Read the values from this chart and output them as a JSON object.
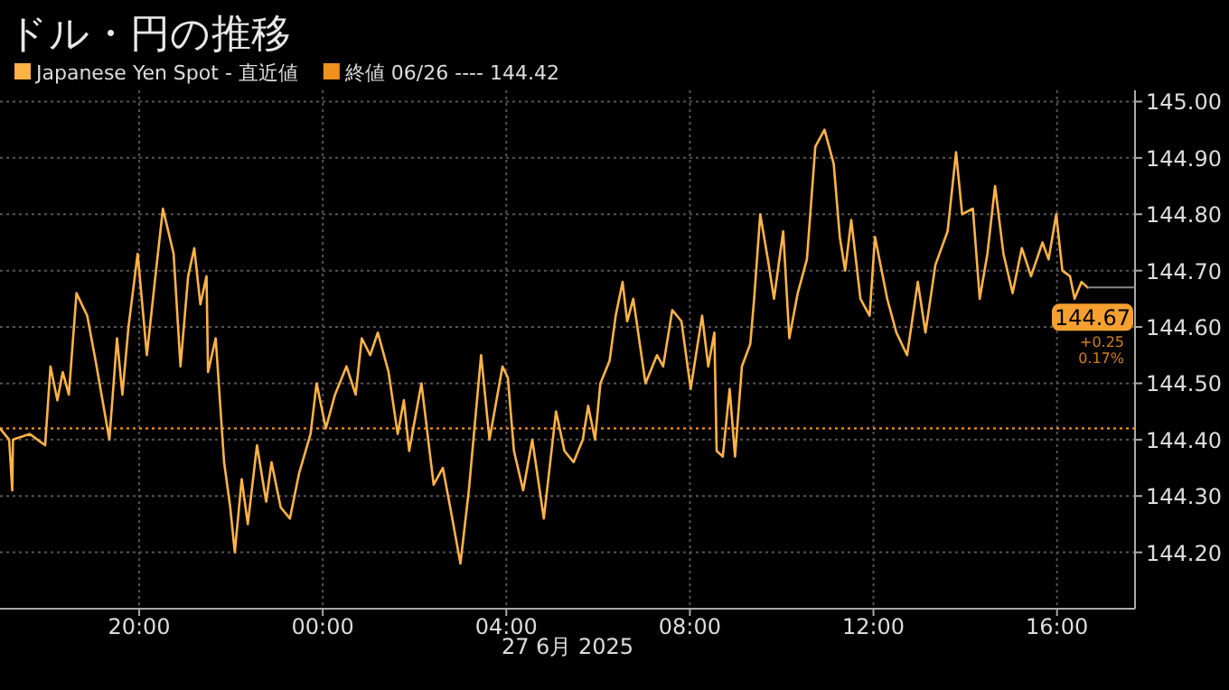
{
  "chart_data": {
    "type": "line",
    "title": "ドル・円の推移",
    "xlabel": "27 6月 2025",
    "x": [
      "2025-06-26T16:58",
      "2025-06-26T17:10",
      "2025-06-26T17:14",
      "2025-06-26T17:15",
      "2025-06-26T17:37",
      "2025-06-26T17:57",
      "2025-06-26T18:04",
      "2025-06-26T18:13",
      "2025-06-26T18:20",
      "2025-06-26T18:28",
      "2025-06-26T18:38",
      "2025-06-26T18:52",
      "2025-06-26T19:03",
      "2025-06-26T19:21",
      "2025-06-26T19:31",
      "2025-06-26T19:38",
      "2025-06-26T19:46",
      "2025-06-26T19:58",
      "2025-06-26T20:10",
      "2025-06-26T20:22",
      "2025-06-26T20:31",
      "2025-06-26T20:45",
      "2025-06-26T20:54",
      "2025-06-26T21:04",
      "2025-06-26T21:12",
      "2025-06-26T21:20",
      "2025-06-26T21:28",
      "2025-06-26T21:30",
      "2025-06-26T21:40",
      "2025-06-26T21:51",
      "2025-06-26T21:59",
      "2025-06-26T22:05",
      "2025-06-26T22:14",
      "2025-06-26T22:22",
      "2025-06-26T22:34",
      "2025-06-26T22:46",
      "2025-06-26T22:53",
      "2025-06-26T23:05",
      "2025-06-26T23:17",
      "2025-06-26T23:29",
      "2025-06-26T23:44",
      "2025-06-26T23:52",
      "2025-06-27T00:04",
      "2025-06-27T00:16",
      "2025-06-27T00:31",
      "2025-06-27T00:43",
      "2025-06-27T00:51",
      "2025-06-27T01:02",
      "2025-06-27T01:12",
      "2025-06-27T01:26",
      "2025-06-27T01:38",
      "2025-06-27T01:46",
      "2025-06-27T01:53",
      "2025-06-27T02:09",
      "2025-06-27T02:25",
      "2025-06-27T02:37",
      "2025-06-27T02:48",
      "2025-06-27T03:00",
      "2025-06-27T03:11",
      "2025-06-27T03:27",
      "2025-06-27T03:38",
      "2025-06-27T03:55",
      "2025-06-27T04:02",
      "2025-06-27T04:10",
      "2025-06-27T04:22",
      "2025-06-27T04:34",
      "2025-06-27T04:49",
      "2025-06-27T05:05",
      "2025-06-27T05:16",
      "2025-06-27T05:28",
      "2025-06-27T05:40",
      "2025-06-27T05:47",
      "2025-06-27T05:56",
      "2025-06-27T06:03",
      "2025-06-27T06:15",
      "2025-06-27T06:23",
      "2025-06-27T06:32",
      "2025-06-27T06:38",
      "2025-06-27T06:46",
      "2025-06-27T07:02",
      "2025-06-27T07:17",
      "2025-06-27T07:25",
      "2025-06-27T07:37",
      "2025-06-27T07:49",
      "2025-06-27T08:01",
      "2025-06-27T08:16",
      "2025-06-27T08:24",
      "2025-06-27T08:32",
      "2025-06-27T08:35",
      "2025-06-27T08:43",
      "2025-06-27T08:52",
      "2025-06-27T08:59",
      "2025-06-27T09:08",
      "2025-06-27T09:19",
      "2025-06-27T09:24",
      "2025-06-27T09:32",
      "2025-06-27T09:42",
      "2025-06-27T09:50",
      "2025-06-27T10:02",
      "2025-06-27T10:10",
      "2025-06-27T10:21",
      "2025-06-27T10:33",
      "2025-06-27T10:44",
      "2025-06-27T10:56",
      "2025-06-27T11:08",
      "2025-06-27T11:16",
      "2025-06-27T11:23",
      "2025-06-27T11:31",
      "2025-06-27T11:43",
      "2025-06-27T11:55",
      "2025-06-27T12:02",
      "2025-06-27T12:18",
      "2025-06-27T12:30",
      "2025-06-27T12:44",
      "2025-06-27T12:58",
      "2025-06-27T13:08",
      "2025-06-27T13:21",
      "2025-06-27T13:37",
      "2025-06-27T13:48",
      "2025-06-27T13:56",
      "2025-06-27T14:10",
      "2025-06-27T14:19",
      "2025-06-27T14:29",
      "2025-06-27T14:39",
      "2025-06-27T14:50",
      "2025-06-27T15:02",
      "2025-06-27T15:14",
      "2025-06-27T15:26",
      "2025-06-27T15:41",
      "2025-06-27T15:49",
      "2025-06-27T15:59",
      "2025-06-27T16:07",
      "2025-06-27T16:17",
      "2025-06-27T16:23",
      "2025-06-27T16:32",
      "2025-06-27T16:40"
    ],
    "series": [
      {
        "name": "Japanese Yen Spot - 直近値",
        "color": "#ffb347",
        "values": [
          144.42,
          144.4,
          144.31,
          144.4,
          144.41,
          144.39,
          144.53,
          144.47,
          144.52,
          144.48,
          144.66,
          144.62,
          144.54,
          144.4,
          144.58,
          144.48,
          144.6,
          144.73,
          144.55,
          144.7,
          144.81,
          144.73,
          144.53,
          144.69,
          144.74,
          144.64,
          144.69,
          144.52,
          144.58,
          144.36,
          144.28,
          144.2,
          144.33,
          144.25,
          144.39,
          144.29,
          144.36,
          144.28,
          144.26,
          144.34,
          144.41,
          144.5,
          144.42,
          144.48,
          144.53,
          144.48,
          144.58,
          144.55,
          144.59,
          144.52,
          144.41,
          144.47,
          144.38,
          144.5,
          144.32,
          144.35,
          144.27,
          144.18,
          144.31,
          144.55,
          144.4,
          144.53,
          144.51,
          144.38,
          144.31,
          144.4,
          144.26,
          144.45,
          144.38,
          144.36,
          144.4,
          144.46,
          144.4,
          144.5,
          144.54,
          144.62,
          144.68,
          144.61,
          144.65,
          144.5,
          144.55,
          144.53,
          144.63,
          144.61,
          144.49,
          144.62,
          144.53,
          144.59,
          144.38,
          144.37,
          144.49,
          144.37,
          144.53,
          144.57,
          144.65,
          144.8,
          144.72,
          144.65,
          144.77,
          144.58,
          144.66,
          144.72,
          144.92,
          144.95,
          144.89,
          144.76,
          144.7,
          144.79,
          144.65,
          144.62,
          144.76,
          144.65,
          144.59,
          144.55,
          144.68,
          144.59,
          144.71,
          144.77,
          144.91,
          144.8,
          144.81,
          144.65,
          144.73,
          144.85,
          144.73,
          144.66,
          144.74,
          144.69,
          144.75,
          144.72,
          144.8,
          144.7,
          144.69,
          144.65,
          144.68,
          144.67
        ]
      }
    ],
    "xlim": [
      "2025-06-26T16:58",
      "2025-06-27T17:42"
    ],
    "ylim": [
      144.1,
      145.02
    ],
    "xticks": [
      {
        "value": "2025-06-26T20:00",
        "label": "20:00"
      },
      {
        "value": "2025-06-27T00:00",
        "label": "00:00"
      },
      {
        "value": "2025-06-27T04:00",
        "label": "04:00"
      },
      {
        "value": "2025-06-27T08:00",
        "label": "08:00"
      },
      {
        "value": "2025-06-27T12:00",
        "label": "12:00"
      },
      {
        "value": "2025-06-27T16:00",
        "label": "16:00"
      }
    ],
    "yticks": [
      {
        "value": 144.2,
        "label": "144.20"
      },
      {
        "value": 144.3,
        "label": "144.30"
      },
      {
        "value": 144.4,
        "label": "144.40"
      },
      {
        "value": 144.5,
        "label": "144.50"
      },
      {
        "value": 144.6,
        "label": "144.60"
      },
      {
        "value": 144.7,
        "label": "144.70"
      },
      {
        "value": 144.8,
        "label": "144.80"
      },
      {
        "value": 144.9,
        "label": "144.90"
      },
      {
        "value": 145.0,
        "label": "145.00"
      }
    ],
    "grid": true,
    "legend": "top left",
    "line_style": "solid",
    "ref_lines": [
      {
        "axis": "y",
        "value": 144.42,
        "label": "終値 06/26 ---- 144.42",
        "color": "#f0901e",
        "line_style": "dotted"
      }
    ],
    "annotations": [
      {
        "text": "144.67",
        "x": "2025-06-27T16:40",
        "y": 144.67
      },
      "+0.25",
      "0.17%"
    ]
  }
}
